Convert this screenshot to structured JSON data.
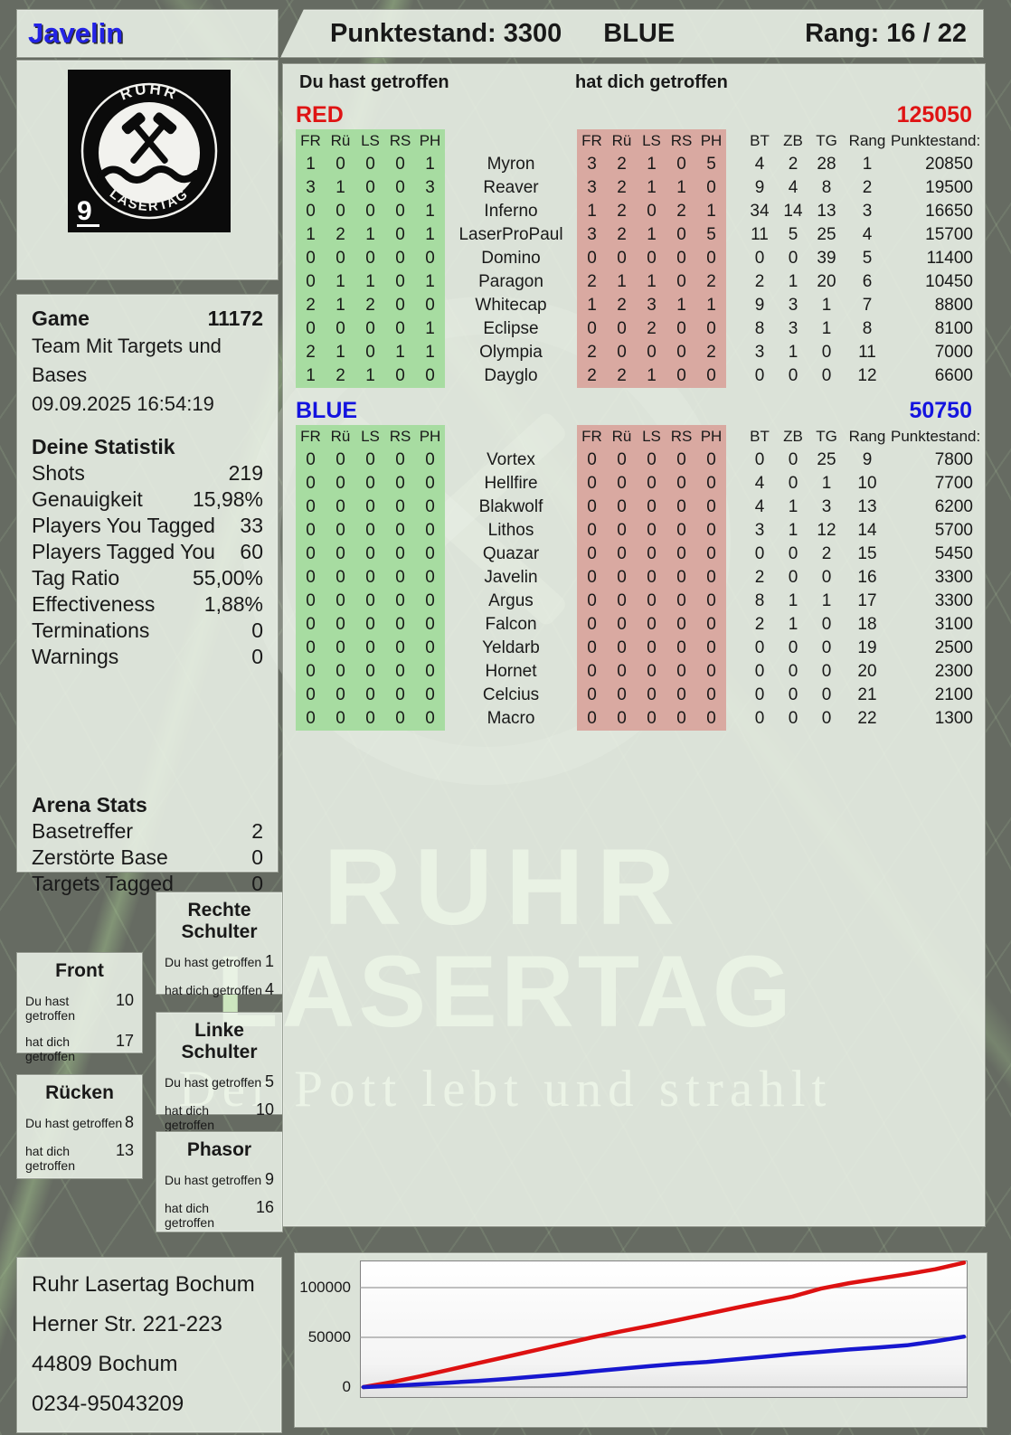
{
  "header": {
    "player": "Javelin",
    "punktestand": "Punktestand: 3300",
    "team": "BLUE",
    "rang": "Rang: 16 / 22"
  },
  "logo": {
    "arc_top": "RUHR",
    "arc_bottom": "LASERTAG",
    "corner": "9"
  },
  "game": {
    "label": "Game",
    "number": "11172",
    "mode": "Team Mit Targets und Bases",
    "datetime": "09.09.2025 16:54:19"
  },
  "stats": {
    "title": "Deine Statistik",
    "rows": [
      {
        "label": "Shots",
        "value": "219"
      },
      {
        "label": "Genauigkeit",
        "value": "15,98%"
      },
      {
        "label": "Players You Tagged",
        "value": "33"
      },
      {
        "label": "Players Tagged You",
        "value": "60"
      },
      {
        "label": "Tag Ratio",
        "value": "55,00%"
      },
      {
        "label": "Effectiveness",
        "value": "1,88%"
      },
      {
        "label": "Terminations",
        "value": "0"
      },
      {
        "label": "Warnings",
        "value": "0"
      }
    ]
  },
  "arena": {
    "title": "Arena Stats",
    "rows": [
      {
        "label": "Basetreffer",
        "value": "2"
      },
      {
        "label": "Zerstörte Base",
        "value": "0"
      },
      {
        "label": "Targets Tagged",
        "value": "0"
      }
    ]
  },
  "columns": {
    "du": "Du hast getroffen",
    "dich": "hat dich getroffen",
    "hit": [
      "FR",
      "Rü",
      "LS",
      "RS",
      "PH"
    ],
    "right": [
      "BT",
      "ZB",
      "TG",
      "Rang",
      "Punktestand:"
    ]
  },
  "teams": [
    {
      "name": "RED",
      "score": "125050",
      "color": "#df1414",
      "rows": [
        {
          "you": [
            1,
            0,
            0,
            0,
            1
          ],
          "name": "Myron",
          "them": [
            3,
            2,
            1,
            0,
            5
          ],
          "bt": 4,
          "zb": 2,
          "tg": 28,
          "rang": 1,
          "punkte": "20850"
        },
        {
          "you": [
            3,
            1,
            0,
            0,
            3
          ],
          "name": "Reaver",
          "them": [
            3,
            2,
            1,
            1,
            0
          ],
          "bt": 9,
          "zb": 4,
          "tg": 8,
          "rang": 2,
          "punkte": "19500"
        },
        {
          "you": [
            0,
            0,
            0,
            0,
            1
          ],
          "name": "Inferno",
          "them": [
            1,
            2,
            0,
            2,
            1
          ],
          "bt": 34,
          "zb": 14,
          "tg": 13,
          "rang": 3,
          "punkte": "16650"
        },
        {
          "you": [
            1,
            2,
            1,
            0,
            1
          ],
          "name": "LaserProPaul",
          "them": [
            3,
            2,
            1,
            0,
            5
          ],
          "bt": 11,
          "zb": 5,
          "tg": 25,
          "rang": 4,
          "punkte": "15700"
        },
        {
          "you": [
            0,
            0,
            0,
            0,
            0
          ],
          "name": "Domino",
          "them": [
            0,
            0,
            0,
            0,
            0
          ],
          "bt": 0,
          "zb": 0,
          "tg": 39,
          "rang": 5,
          "punkte": "11400"
        },
        {
          "you": [
            0,
            1,
            1,
            0,
            1
          ],
          "name": "Paragon",
          "them": [
            2,
            1,
            1,
            0,
            2
          ],
          "bt": 2,
          "zb": 1,
          "tg": 20,
          "rang": 6,
          "punkte": "10450"
        },
        {
          "you": [
            2,
            1,
            2,
            0,
            0
          ],
          "name": "Whitecap",
          "them": [
            1,
            2,
            3,
            1,
            1
          ],
          "bt": 9,
          "zb": 3,
          "tg": 1,
          "rang": 7,
          "punkte": "8800"
        },
        {
          "you": [
            0,
            0,
            0,
            0,
            1
          ],
          "name": "Eclipse",
          "them": [
            0,
            0,
            2,
            0,
            0
          ],
          "bt": 8,
          "zb": 3,
          "tg": 1,
          "rang": 8,
          "punkte": "8100"
        },
        {
          "you": [
            2,
            1,
            0,
            1,
            1
          ],
          "name": "Olympia",
          "them": [
            2,
            0,
            0,
            0,
            2
          ],
          "bt": 3,
          "zb": 1,
          "tg": 0,
          "rang": 11,
          "punkte": "7000"
        },
        {
          "you": [
            1,
            2,
            1,
            0,
            0
          ],
          "name": "Dayglo",
          "them": [
            2,
            2,
            1,
            0,
            0
          ],
          "bt": 0,
          "zb": 0,
          "tg": 0,
          "rang": 12,
          "punkte": "6600"
        }
      ]
    },
    {
      "name": "BLUE",
      "score": "50750",
      "color": "#1414df",
      "rows": [
        {
          "you": [
            0,
            0,
            0,
            0,
            0
          ],
          "name": "Vortex",
          "them": [
            0,
            0,
            0,
            0,
            0
          ],
          "bt": 0,
          "zb": 0,
          "tg": 25,
          "rang": 9,
          "punkte": "7800"
        },
        {
          "you": [
            0,
            0,
            0,
            0,
            0
          ],
          "name": "Hellfire",
          "them": [
            0,
            0,
            0,
            0,
            0
          ],
          "bt": 4,
          "zb": 0,
          "tg": 1,
          "rang": 10,
          "punkte": "7700"
        },
        {
          "you": [
            0,
            0,
            0,
            0,
            0
          ],
          "name": "Blakwolf",
          "them": [
            0,
            0,
            0,
            0,
            0
          ],
          "bt": 4,
          "zb": 1,
          "tg": 3,
          "rang": 13,
          "punkte": "6200"
        },
        {
          "you": [
            0,
            0,
            0,
            0,
            0
          ],
          "name": "Lithos",
          "them": [
            0,
            0,
            0,
            0,
            0
          ],
          "bt": 3,
          "zb": 1,
          "tg": 12,
          "rang": 14,
          "punkte": "5700"
        },
        {
          "you": [
            0,
            0,
            0,
            0,
            0
          ],
          "name": "Quazar",
          "them": [
            0,
            0,
            0,
            0,
            0
          ],
          "bt": 0,
          "zb": 0,
          "tg": 2,
          "rang": 15,
          "punkte": "5450"
        },
        {
          "you": [
            0,
            0,
            0,
            0,
            0
          ],
          "name": "Javelin",
          "them": [
            0,
            0,
            0,
            0,
            0
          ],
          "bt": 2,
          "zb": 0,
          "tg": 0,
          "rang": 16,
          "punkte": "3300"
        },
        {
          "you": [
            0,
            0,
            0,
            0,
            0
          ],
          "name": "Argus",
          "them": [
            0,
            0,
            0,
            0,
            0
          ],
          "bt": 8,
          "zb": 1,
          "tg": 1,
          "rang": 17,
          "punkte": "3300"
        },
        {
          "you": [
            0,
            0,
            0,
            0,
            0
          ],
          "name": "Falcon",
          "them": [
            0,
            0,
            0,
            0,
            0
          ],
          "bt": 2,
          "zb": 1,
          "tg": 0,
          "rang": 18,
          "punkte": "3100"
        },
        {
          "you": [
            0,
            0,
            0,
            0,
            0
          ],
          "name": "Yeldarb",
          "them": [
            0,
            0,
            0,
            0,
            0
          ],
          "bt": 0,
          "zb": 0,
          "tg": 0,
          "rang": 19,
          "punkte": "2500"
        },
        {
          "you": [
            0,
            0,
            0,
            0,
            0
          ],
          "name": "Hornet",
          "them": [
            0,
            0,
            0,
            0,
            0
          ],
          "bt": 0,
          "zb": 0,
          "tg": 0,
          "rang": 20,
          "punkte": "2300"
        },
        {
          "you": [
            0,
            0,
            0,
            0,
            0
          ],
          "name": "Celcius",
          "them": [
            0,
            0,
            0,
            0,
            0
          ],
          "bt": 0,
          "zb": 0,
          "tg": 0,
          "rang": 21,
          "punkte": "2100"
        },
        {
          "you": [
            0,
            0,
            0,
            0,
            0
          ],
          "name": "Macro",
          "them": [
            0,
            0,
            0,
            0,
            0
          ],
          "bt": 0,
          "zb": 0,
          "tg": 0,
          "rang": 22,
          "punkte": "1300"
        }
      ]
    }
  ],
  "hit_boxes": [
    {
      "title": "Rechte Schulter",
      "du": "1",
      "dich": "4"
    },
    {
      "title": "Front",
      "du": "10",
      "dich": "17"
    },
    {
      "title": "Linke Schulter",
      "du": "5",
      "dich": "10"
    },
    {
      "title": "Rücken",
      "du": "8",
      "dich": "13"
    },
    {
      "title": "Phasor",
      "du": "9",
      "dich": "16"
    }
  ],
  "footer": {
    "lines": [
      "Ruhr Lasertag Bochum",
      "Herner Str. 221-223",
      "44809 Bochum",
      "0234-95043209"
    ]
  },
  "watermark": {
    "line1": "RUHR",
    "line2": "LASERTAG",
    "line3": "Der Pott lebt und strahlt"
  },
  "chart_data": {
    "type": "line",
    "title": "",
    "xlabel": "",
    "ylabel": "",
    "yticks": [
      0,
      50000,
      100000
    ],
    "ylim": [
      0,
      127000
    ],
    "grid": true,
    "legend": "none",
    "series": [
      {
        "name": "RED team score",
        "color": "#dd1111",
        "values": [
          0,
          5000,
          11000,
          17500,
          24000,
          30500,
          37000,
          43500,
          50000,
          56000,
          61500,
          67500,
          73500,
          79500,
          85500,
          91000,
          99000,
          104500,
          109000,
          113500,
          118500,
          125050
        ]
      },
      {
        "name": "BLUE team score",
        "color": "#1717cf",
        "values": [
          0,
          1200,
          2800,
          4500,
          6200,
          8200,
          10500,
          13000,
          15800,
          18500,
          21000,
          23500,
          25200,
          27800,
          30500,
          33200,
          35500,
          37800,
          39800,
          42000,
          46000,
          50750
        ]
      }
    ]
  }
}
